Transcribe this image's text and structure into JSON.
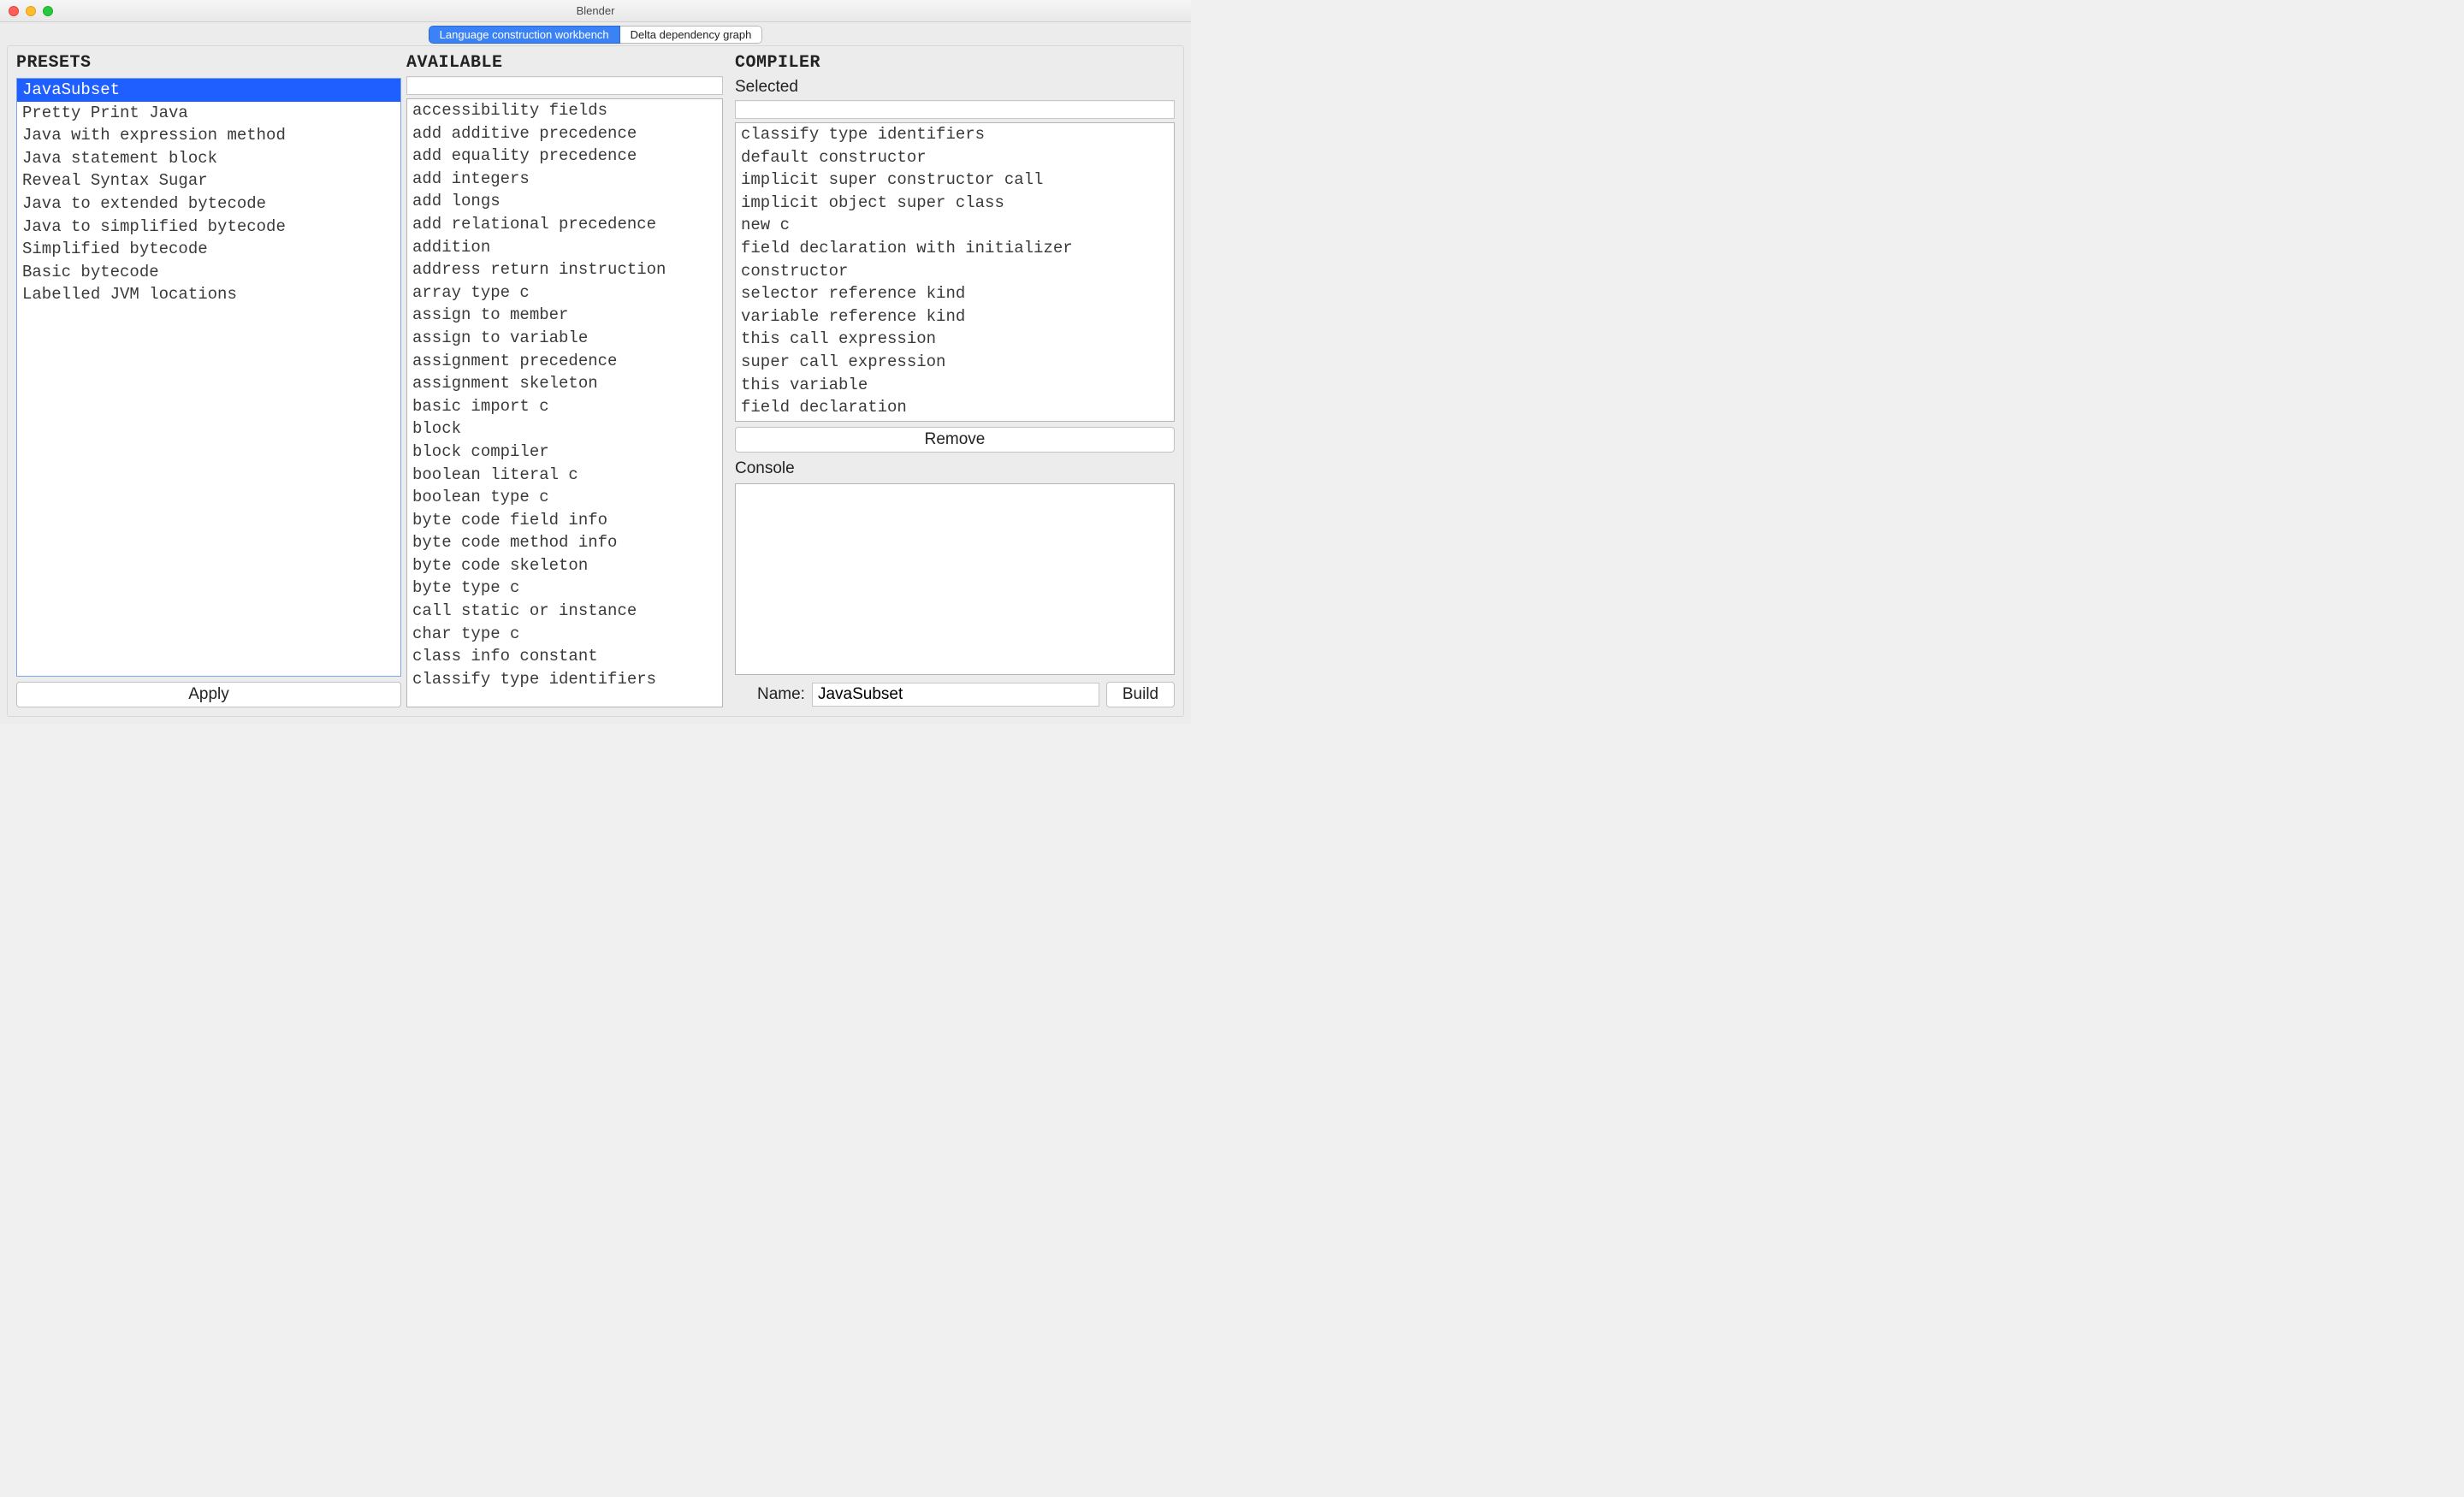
{
  "window": {
    "title": "Blender"
  },
  "tabs": {
    "active": "Language construction workbench",
    "inactive": "Delta dependency graph"
  },
  "presets": {
    "header": "PRESETS",
    "items": [
      "JavaSubset",
      "Pretty Print Java",
      "Java with expression method",
      "Java statement block",
      "Reveal Syntax Sugar",
      "Java to extended bytecode",
      "Java to simplified bytecode",
      "Simplified bytecode",
      "Basic bytecode",
      "Labelled JVM locations"
    ],
    "selected_index": 0,
    "apply_label": "Apply"
  },
  "available": {
    "header": "AVAILABLE",
    "filter_value": "",
    "items": [
      "accessibility fields",
      "add additive precedence",
      "add equality precedence",
      "add integers",
      "add longs",
      "add relational precedence",
      "addition",
      "address return instruction",
      "array type c",
      "assign to member",
      "assign to variable",
      "assignment precedence",
      "assignment skeleton",
      "basic import c",
      "block",
      "block compiler",
      "boolean literal c",
      "boolean type c",
      "byte code field info",
      "byte code method info",
      "byte code skeleton",
      "byte type c",
      "call static or instance",
      "char type c",
      "class info constant",
      "classify type identifiers"
    ]
  },
  "compiler": {
    "header": "COMPILER",
    "selected_header": "Selected",
    "filter_value": "",
    "selected_items": [
      "classify type identifiers",
      "default constructor",
      "implicit super constructor call",
      "implicit object super class",
      "new c",
      "field declaration with initializer",
      "constructor",
      "selector reference kind",
      "variable reference kind",
      "this call expression",
      "super call expression",
      "this variable",
      "field declaration"
    ],
    "remove_label": "Remove",
    "console_header": "Console",
    "console_text": "",
    "name_label": "Name:",
    "name_value": "JavaSubset",
    "build_label": "Build"
  },
  "colors": {
    "selection_bg": "#1f5fff",
    "tab_active_bg": "#3b82f6",
    "window_bg": "#ececec"
  }
}
